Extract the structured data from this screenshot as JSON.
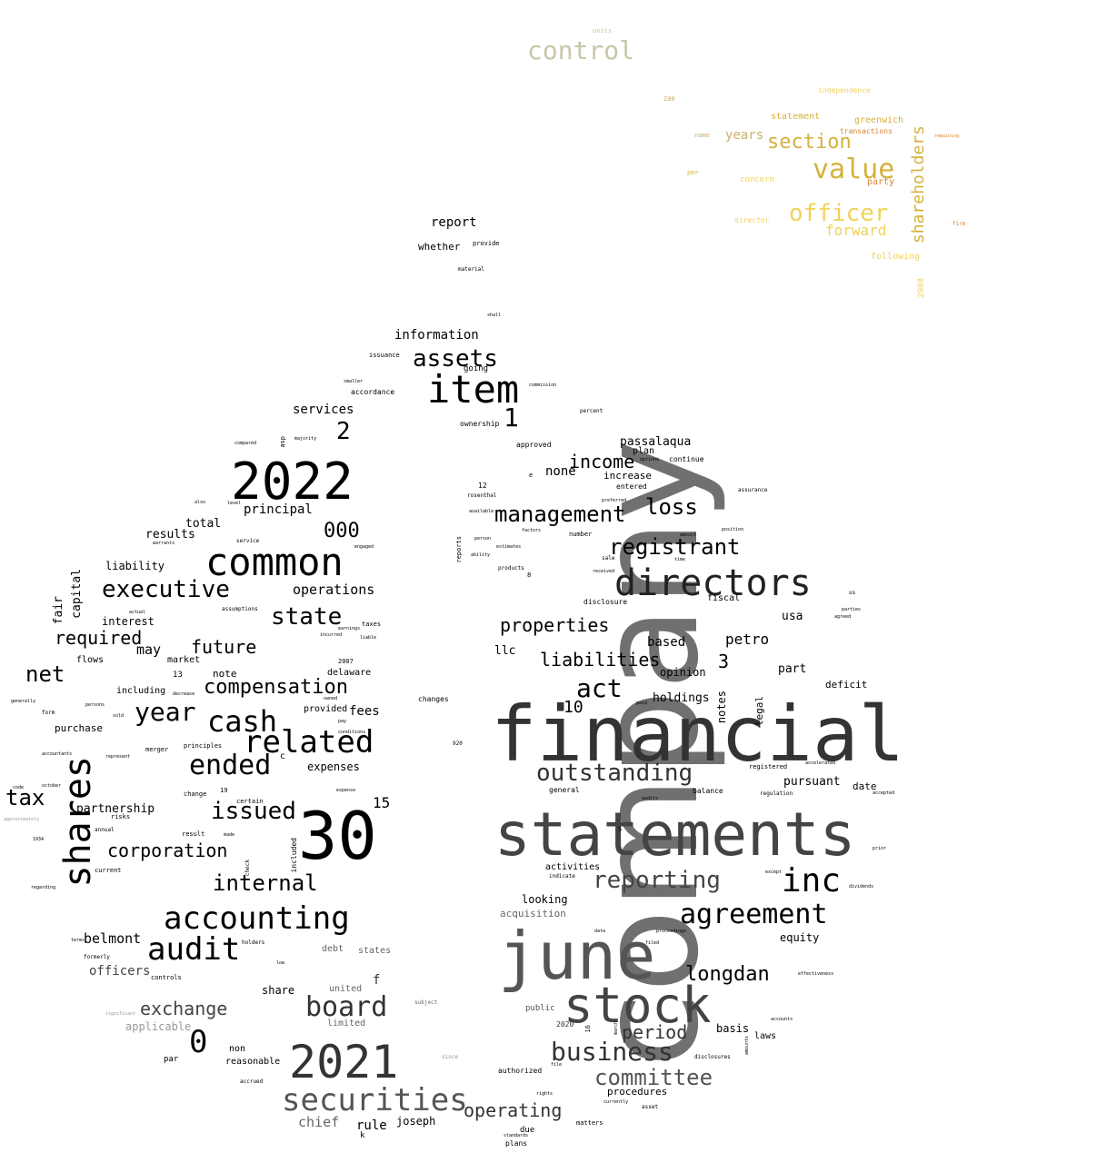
{
  "words": {
    "company": "company",
    "financial": "financial",
    "statements": "statements",
    "june": "june",
    "stock": "stock",
    "y2022": "2022",
    "n30": "30",
    "y2021": "2021",
    "item": "item",
    "common": "common",
    "directors": "directors",
    "shares": "shares",
    "securities": "securities",
    "accounting": "accounting",
    "audit": "audit",
    "related": "related",
    "cash": "cash",
    "ended": "ended",
    "agreement": "agreement",
    "inc": "inc",
    "board": "board",
    "business": "business",
    "committee": "committee",
    "outstanding": "outstanding",
    "reporting": "reporting",
    "management": "management",
    "registrant": "registrant",
    "executive": "executive",
    "year": "year",
    "act": "act",
    "assets": "assets",
    "state": "state",
    "issued": "issued",
    "internal": "internal",
    "loss": "loss",
    "compensation": "compensation",
    "value": "value",
    "officer": "officer",
    "section": "section",
    "shareholders": "shareholders",
    "control": "control",
    "properties": "properties",
    "liabilities": "liabilities",
    "income": "income",
    "exchange": "exchange",
    "longdan": "longdan",
    "period": "period",
    "operating": "operating",
    "corporation": "corporation",
    "net": "net",
    "tax": "tax",
    "future": "future",
    "required": "required",
    "zero": "0",
    "two": "2",
    "one": "1",
    "three": "3",
    "ten": "10",
    "fifteen": "15",
    "thousand": "000",
    "forward": "forward",
    "years": "years",
    "passalaqua": "passalaqua",
    "information": "information",
    "report": "report",
    "whether": "whether",
    "services": "services",
    "principal": "principal",
    "total": "total",
    "results": "results",
    "liability": "liability",
    "interest": "interest",
    "capital": "capital",
    "fair": "fair",
    "may": "may",
    "operations": "operations",
    "belmont": "belmont",
    "officers": "officers",
    "applicable": "applicable",
    "chief": "chief",
    "rule": "rule",
    "joseph": "joseph",
    "partnership": "partnership",
    "purchase": "purchase",
    "none": "none",
    "increase": "increase",
    "plan": "plan",
    "llc": "llc",
    "based": "based",
    "petro": "petro",
    "opinion": "opinion",
    "holdings": "holdings",
    "notes": "notes",
    "legal": "legal",
    "part": "part",
    "usa": "usa",
    "deficit": "deficit",
    "pursuant": "pursuant",
    "date": "date",
    "equity": "equity",
    "basis": "basis",
    "laws": "laws",
    "procedures": "procedures",
    "looking": "looking",
    "acquisition": "acquisition",
    "activities": "activities",
    "fees": "fees",
    "expenses": "expenses",
    "share": "share",
    "united": "united",
    "limited": "limited",
    "debt": "debt",
    "states": "states",
    "f": "f",
    "non": "non",
    "reasonable": "reasonable",
    "par": "par",
    "note": "note",
    "delaware": "delaware",
    "market": "market",
    "including": "including",
    "flows": "flows",
    "statement": "statement",
    "greenwich": "greenwich",
    "transactions": "transactions",
    "party": "party",
    "concern": "concern",
    "director": "director",
    "following": "following",
    "y2008": "2008",
    "fiscal": "fiscal",
    "going": "going",
    "accordance": "accordance",
    "ownership": "ownership",
    "approved": "approved",
    "continue": "continue",
    "entered": "entered",
    "twelve": "12",
    "rosenthal": "rosenthal",
    "issuance": "issuance",
    "provide": "provide",
    "material": "material",
    "asp": "asp",
    "changes": "changes",
    "general": "general",
    "balance": "balance",
    "registered": "registered",
    "regulation": "regulation",
    "public": "public",
    "authorized": "authorized",
    "due": "due",
    "plans": "plans",
    "matters": "matters",
    "k": "k",
    "included": "included",
    "check": "check",
    "thirteen": "13",
    "y2007": "2007",
    "nineteen": "19",
    "result": "result",
    "annual": "annual",
    "risks": "risks",
    "principles": "principles",
    "merger": "merger",
    "change": "change",
    "certain": "certain",
    "current": "current",
    "units": "units",
    "independence": "independence",
    "name": "name",
    "per": "per",
    "y200": "200",
    "percent": "percent",
    "assurance": "assurance",
    "disclosure": "disclosure",
    "number": "number",
    "products": "products",
    "sale": "sale",
    "received": "received",
    "preferred": "preferred",
    "options": "options",
    "available": "available",
    "estimates": "estimates",
    "factors": "factors",
    "person": "person",
    "reports": "reports",
    "ability": "ability",
    "compared": "compared",
    "majority": "majority",
    "level": "level",
    "also": "also",
    "service": "service",
    "warrants": "warrants",
    "engaged": "engaged",
    "assumptions": "assumptions",
    "actual": "actual",
    "taxes": "taxes",
    "earnings": "earnings",
    "liable": "liable",
    "incurred": "incurred",
    "owned": "owned",
    "pay": "pay",
    "conditions": "conditions",
    "expense": "expense",
    "made": "made",
    "accepted": "accepted",
    "accelerated": "accelerated",
    "disclosures": "disclosures",
    "dividends": "dividends",
    "prior": "prior",
    "us": "us",
    "parties": "parties",
    "agreed": "agreed",
    "regarding": "regarding",
    "generally": "generally",
    "form": "form",
    "accountants": "accountants",
    "represent": "represent",
    "holders": "holders",
    "formerly": "formerly",
    "terms": "terms",
    "controls": "controls",
    "significant": "significant",
    "accrued": "accrued",
    "subject": "subject",
    "since": "since",
    "file": "file",
    "filed": "filed",
    "rights": "rights",
    "standards": "standards",
    "asset": "asset",
    "currently": "currently",
    "amounts": "amounts",
    "accounts": "accounts",
    "effectiveness": "effectiveness",
    "shall": "shall",
    "smaller": "smaller",
    "commission": "commission",
    "y2020": "2020",
    "sixteen": "16",
    "five": "5",
    "eight": "8",
    "n920": "920",
    "c": "c",
    "e": "e",
    "paid": "paid",
    "time": "time",
    "amount": "amount",
    "position": "position",
    "indicate": "indicate",
    "audits": "audits",
    "except": "except",
    "proceedings": "proceedings",
    "data": "data",
    "approximately": "approximately",
    "october": "october",
    "code": "code",
    "decrease": "decrease",
    "persons": "persons",
    "sold": "sold",
    "provided": "provided",
    "y1934": "1934",
    "low": "low",
    "march": "march",
    "firm": "firm",
    "remaining": "remaining"
  },
  "colors": {
    "darkest": "#000000",
    "dark": "#333333",
    "mid": "#5a5a5a",
    "gray": "#777777",
    "light": "#9a9a9a",
    "olive": "#c9c6a6",
    "gold": "#d4b23c",
    "yellow": "#f0d25a",
    "orange": "#d9822b"
  }
}
